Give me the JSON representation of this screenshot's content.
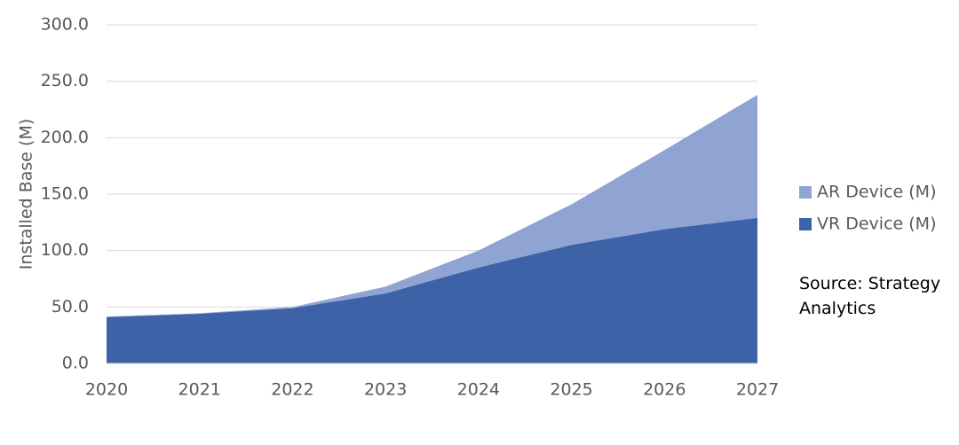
{
  "chart_data": {
    "type": "stacked-area",
    "y_label": "Installed Base (M)",
    "x": [
      2020,
      2021,
      2022,
      2023,
      2024,
      2025,
      2026,
      2027
    ],
    "series": [
      {
        "name": "VR Device (M)",
        "color": "#3d62a8",
        "values": [
          41,
          44,
          49,
          62,
          85,
          105,
          119,
          129
        ]
      },
      {
        "name": "AR Device (M)",
        "color": "#8fa4d3",
        "values": [
          0.5,
          0.5,
          1,
          6,
          15,
          36,
          70,
          109
        ]
      }
    ],
    "xlim": [
      2020,
      2027
    ],
    "xticks": [
      2020,
      2021,
      2022,
      2023,
      2024,
      2025,
      2026,
      2027
    ],
    "ylim": [
      0,
      300
    ],
    "yticks": [
      {
        "value": 0,
        "label": "0.0"
      },
      {
        "value": 50,
        "label": "50.0"
      },
      {
        "value": 100,
        "label": "100.0"
      },
      {
        "value": 150,
        "label": "150.0"
      },
      {
        "value": 200,
        "label": "200.0"
      },
      {
        "value": 250,
        "label": "250.0"
      },
      {
        "value": 300,
        "label": "300.0"
      }
    ],
    "grid": true,
    "legend": "right",
    "annotation": "Source: Strategy Analytics"
  }
}
